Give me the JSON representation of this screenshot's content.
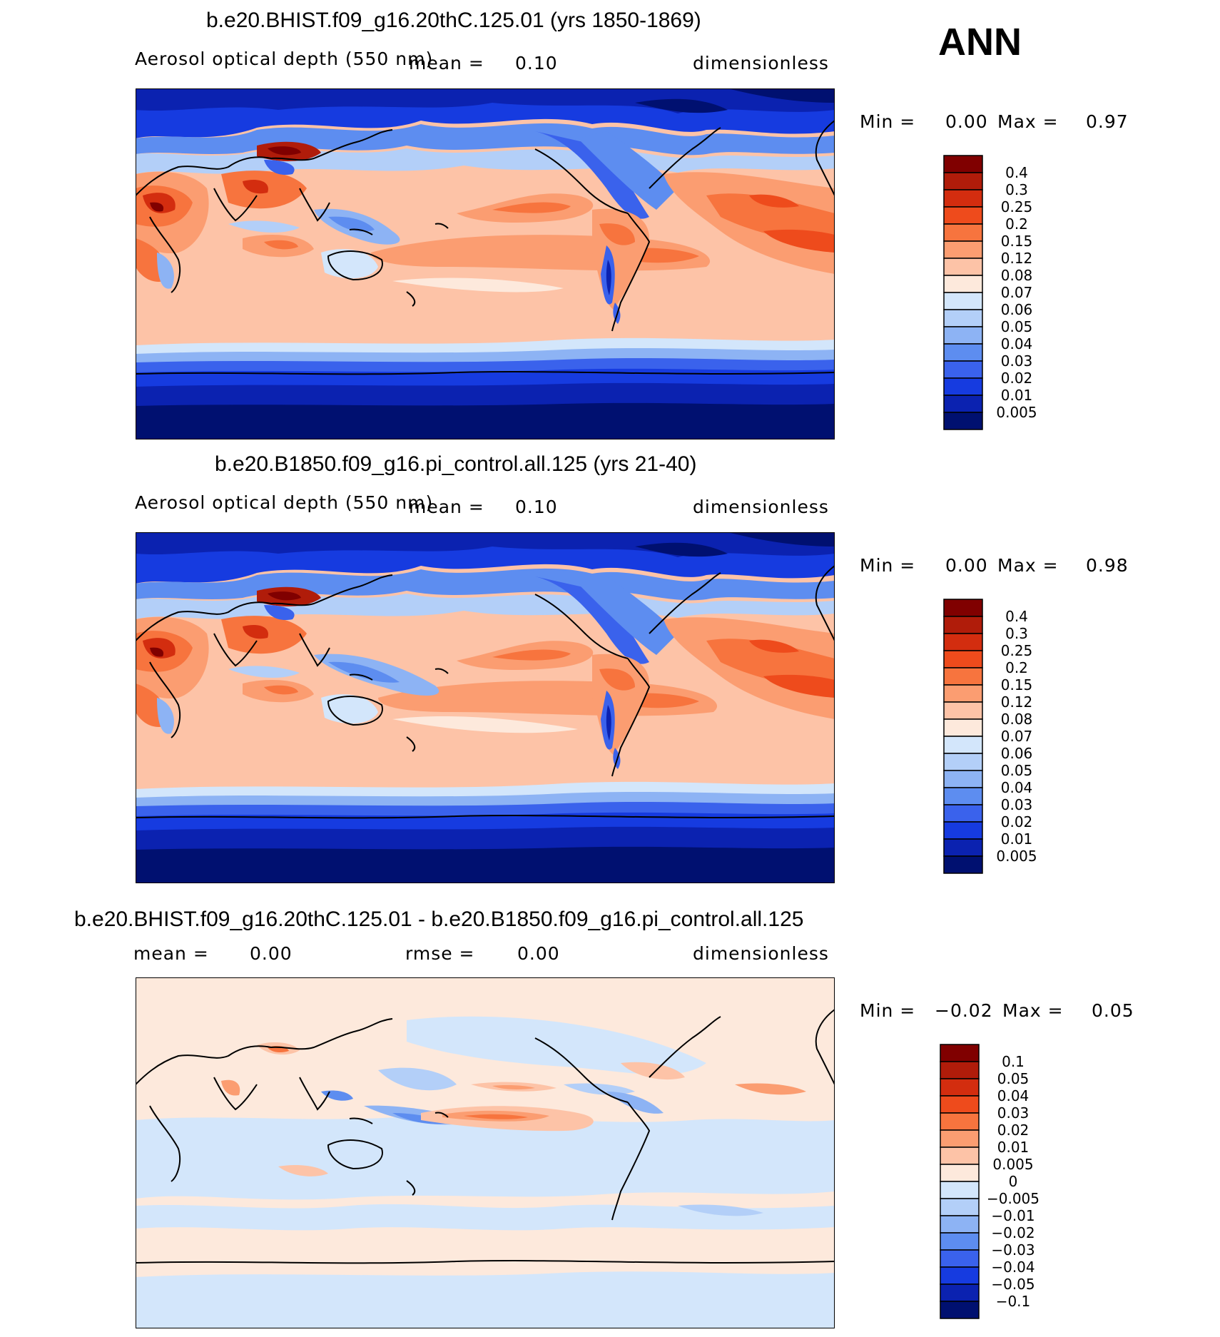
{
  "season": "ANN",
  "panels": [
    {
      "title": "b.e20.BHIST.f09_g16.20thC.125.01 (yrs 1850-1869)",
      "left_label": "Aerosol optical depth (550 nm)",
      "mid_label": "mean =",
      "mid_value": "0.10",
      "right_label": "dimensionless",
      "min_label": "Min =",
      "min_value": "0.00",
      "max_label": "Max =",
      "max_value": "0.97",
      "colorbar_levels": [
        "0.4",
        "0.3",
        "0.25",
        "0.2",
        "0.15",
        "0.12",
        "0.08",
        "0.07",
        "0.06",
        "0.05",
        "0.04",
        "0.03",
        "0.02",
        "0.01",
        "0.005"
      ],
      "colorbar_colors": [
        "#800000",
        "#b01c0a",
        "#d32d0f",
        "#ee4b1c",
        "#f7743e",
        "#fb9d71",
        "#fdc3a7",
        "#fde9dc",
        "#d3e6fb",
        "#b3cff8",
        "#8db3f4",
        "#5d8df0",
        "#3a62ec",
        "#163be0",
        "#0b22b0",
        "#001070"
      ]
    },
    {
      "title": "b.e20.B1850.f09_g16.pi_control.all.125 (yrs 21-40)",
      "left_label": "Aerosol optical depth (550 nm)",
      "mid_label": "mean =",
      "mid_value": "0.10",
      "right_label": "dimensionless",
      "min_label": "Min =",
      "min_value": "0.00",
      "max_label": "Max =",
      "max_value": "0.98",
      "colorbar_levels": [
        "0.4",
        "0.3",
        "0.25",
        "0.2",
        "0.15",
        "0.12",
        "0.08",
        "0.07",
        "0.06",
        "0.05",
        "0.04",
        "0.03",
        "0.02",
        "0.01",
        "0.005"
      ],
      "colorbar_colors": [
        "#800000",
        "#b01c0a",
        "#d32d0f",
        "#ee4b1c",
        "#f7743e",
        "#fb9d71",
        "#fdc3a7",
        "#fde9dc",
        "#d3e6fb",
        "#b3cff8",
        "#8db3f4",
        "#5d8df0",
        "#3a62ec",
        "#163be0",
        "#0b22b0",
        "#001070"
      ]
    },
    {
      "title": "b.e20.BHIST.f09_g16.20thC.125.01 - b.e20.B1850.f09_g16.pi_control.all.125",
      "left_label": "mean =",
      "left_value": "0.00",
      "mid_label": "rmse =",
      "mid_value": "0.00",
      "right_label": "dimensionless",
      "min_label": "Min =",
      "min_value": "−0.02",
      "max_label": "Max =",
      "max_value": "0.05",
      "colorbar_levels": [
        "0.1",
        "0.05",
        "0.04",
        "0.03",
        "0.02",
        "0.01",
        "0.005",
        "0",
        "−0.005",
        "−0.01",
        "−0.02",
        "−0.03",
        "−0.04",
        "−0.05",
        "−0.1"
      ],
      "colorbar_colors": [
        "#800000",
        "#b01c0a",
        "#d32d0f",
        "#ee4b1c",
        "#f7743e",
        "#fb9d71",
        "#fdc3a7",
        "#fde9dc",
        "#d3e6fb",
        "#b3cff8",
        "#8db3f4",
        "#5d8df0",
        "#3a62ec",
        "#163be0",
        "#0b22b0",
        "#001070"
      ]
    }
  ],
  "chart_data": [
    {
      "type": "heatmap",
      "title": "b.e20.BHIST.f09_g16.20thC.125.01 (yrs 1850-1869)",
      "variable": "Aerosol optical depth (550 nm)",
      "units": "dimensionless",
      "mean": 0.1,
      "min": 0.0,
      "max": 0.97,
      "levels": [
        0.005,
        0.01,
        0.02,
        0.03,
        0.04,
        0.05,
        0.06,
        0.07,
        0.08,
        0.12,
        0.15,
        0.2,
        0.25,
        0.3,
        0.4
      ]
    },
    {
      "type": "heatmap",
      "title": "b.e20.B1850.f09_g16.pi_control.all.125 (yrs 21-40)",
      "variable": "Aerosol optical depth (550 nm)",
      "units": "dimensionless",
      "mean": 0.1,
      "min": 0.0,
      "max": 0.98,
      "levels": [
        0.005,
        0.01,
        0.02,
        0.03,
        0.04,
        0.05,
        0.06,
        0.07,
        0.08,
        0.12,
        0.15,
        0.2,
        0.25,
        0.3,
        0.4
      ]
    },
    {
      "type": "heatmap",
      "title": "b.e20.BHIST.f09_g16.20thC.125.01 - b.e20.B1850.f09_g16.pi_control.all.125",
      "units": "dimensionless",
      "mean": 0.0,
      "rmse": 0.0,
      "min": -0.02,
      "max": 0.05,
      "levels": [
        -0.1,
        -0.05,
        -0.04,
        -0.03,
        -0.02,
        -0.01,
        -0.005,
        0,
        0.005,
        0.01,
        0.02,
        0.03,
        0.04,
        0.05,
        0.1
      ]
    }
  ]
}
